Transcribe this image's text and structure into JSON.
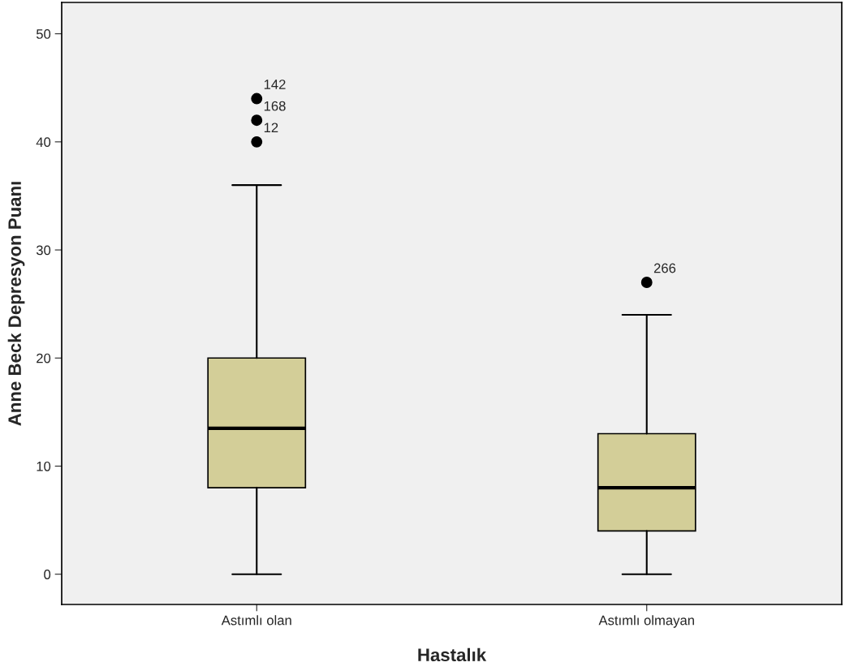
{
  "chart_data": {
    "type": "box",
    "xlabel": "Hastalık",
    "ylabel": "Anne Beck Depresyon Puanı",
    "categories": [
      "Astımlı olan",
      "Astımlı olmayan"
    ],
    "color": "#d3ce98",
    "boxes": [
      {
        "low": 0,
        "q1": 8,
        "median": 13.5,
        "q3": 20,
        "high": 36,
        "outliers": [
          44,
          42,
          40
        ]
      },
      {
        "low": 0,
        "q1": 4,
        "median": 8,
        "q3": 13,
        "high": 24,
        "outliers": [
          27
        ]
      }
    ],
    "ylim": [
      -2.8,
      52.9
    ],
    "yticks": [
      0,
      10,
      20,
      30,
      40,
      50
    ],
    "grid": false,
    "annotations": [
      "142",
      "168",
      "12",
      "266"
    ]
  }
}
